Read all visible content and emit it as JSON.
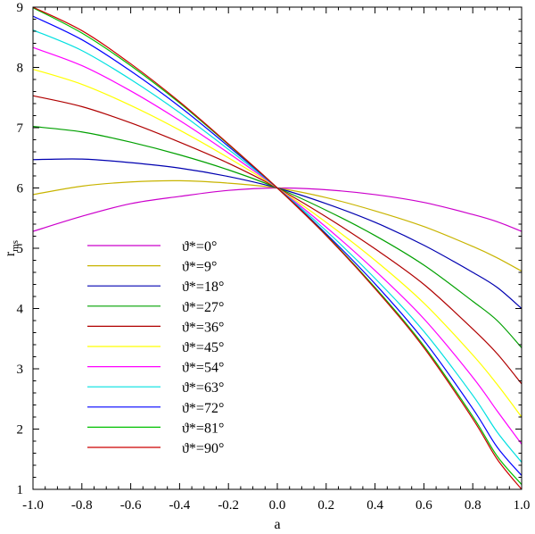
{
  "chart_data": {
    "type": "line",
    "title": "",
    "xlabel": "a",
    "ylabel_main": "r",
    "ylabel_sub": "ms",
    "xlim": [
      -1.0,
      1.0
    ],
    "ylim": [
      1,
      9
    ],
    "xticks": [
      "-1.0",
      "-0.8",
      "-0.6",
      "-0.4",
      "-0.2",
      "0.0",
      "0.2",
      "0.4",
      "0.6",
      "0.8",
      "1.0"
    ],
    "yticks": [
      "1",
      "2",
      "3",
      "4",
      "5",
      "6",
      "7",
      "8",
      "9"
    ],
    "grid": false,
    "legend_placement": "lower-left",
    "series": [
      {
        "name": "ϑ*=0°",
        "theta": 0,
        "color": "#cc00cc",
        "x": [
          -1.0,
          -0.8,
          -0.6,
          -0.4,
          -0.2,
          0.0,
          0.2,
          0.4,
          0.6,
          0.8,
          0.9,
          1.0
        ],
        "y": [
          5.28,
          5.53,
          5.74,
          5.86,
          5.96,
          6.0,
          5.97,
          5.89,
          5.76,
          5.56,
          5.44,
          5.28
        ]
      },
      {
        "name": "ϑ*=9°",
        "theta": 9,
        "color": "#c8b400",
        "x": [
          -1.0,
          -0.8,
          -0.6,
          -0.4,
          -0.2,
          0.0,
          0.2,
          0.4,
          0.6,
          0.8,
          0.9,
          1.0
        ],
        "y": [
          5.89,
          6.03,
          6.1,
          6.12,
          6.08,
          6.0,
          5.84,
          5.62,
          5.36,
          5.03,
          4.84,
          4.62
        ]
      },
      {
        "name": "ϑ*=18°",
        "theta": 18,
        "color": "#0000b0",
        "x": [
          -1.0,
          -0.8,
          -0.6,
          -0.4,
          -0.2,
          0.0,
          0.2,
          0.4,
          0.6,
          0.8,
          0.9,
          1.0
        ],
        "y": [
          6.47,
          6.48,
          6.42,
          6.33,
          6.19,
          6.0,
          5.74,
          5.43,
          5.05,
          4.6,
          4.35,
          4.0
        ]
      },
      {
        "name": "ϑ*=27°",
        "theta": 27,
        "color": "#00a000",
        "x": [
          -1.0,
          -0.8,
          -0.6,
          -0.4,
          -0.2,
          0.0,
          0.2,
          0.4,
          0.6,
          0.8,
          0.9,
          1.0
        ],
        "y": [
          7.02,
          6.93,
          6.76,
          6.55,
          6.3,
          6.0,
          5.63,
          5.21,
          4.72,
          4.12,
          3.8,
          3.35
        ]
      },
      {
        "name": "ϑ*=36°",
        "theta": 36,
        "color": "#b00000",
        "x": [
          -1.0,
          -0.8,
          -0.6,
          -0.4,
          -0.2,
          0.0,
          0.2,
          0.4,
          0.6,
          0.8,
          0.9,
          1.0
        ],
        "y": [
          7.53,
          7.35,
          7.08,
          6.76,
          6.41,
          6.0,
          5.52,
          4.99,
          4.4,
          3.66,
          3.25,
          2.75
        ]
      },
      {
        "name": "ϑ*=45°",
        "theta": 45,
        "color": "#ffff00",
        "x": [
          -1.0,
          -0.8,
          -0.6,
          -0.4,
          -0.2,
          0.0,
          0.2,
          0.4,
          0.6,
          0.8,
          0.9,
          1.0
        ],
        "y": [
          7.97,
          7.72,
          7.37,
          6.96,
          6.5,
          6.0,
          5.43,
          4.8,
          4.09,
          3.23,
          2.74,
          2.2
        ]
      },
      {
        "name": "ϑ*=54°",
        "theta": 54,
        "color": "#ff00ff",
        "x": [
          -1.0,
          -0.8,
          -0.6,
          -0.4,
          -0.2,
          0.0,
          0.2,
          0.4,
          0.6,
          0.8,
          0.9,
          1.0
        ],
        "y": [
          8.33,
          8.03,
          7.61,
          7.12,
          6.58,
          6.0,
          5.35,
          4.63,
          3.83,
          2.86,
          2.3,
          1.75
        ]
      },
      {
        "name": "ϑ*=63°",
        "theta": 63,
        "color": "#00e0e0",
        "x": [
          -1.0,
          -0.8,
          -0.6,
          -0.4,
          -0.2,
          0.0,
          0.2,
          0.4,
          0.6,
          0.8,
          0.9,
          1.0
        ],
        "y": [
          8.62,
          8.28,
          7.8,
          7.25,
          6.64,
          6.0,
          5.29,
          4.5,
          3.62,
          2.56,
          1.95,
          1.45
        ]
      },
      {
        "name": "ϑ*=72°",
        "theta": 72,
        "color": "#0000ff",
        "x": [
          -1.0,
          -0.8,
          -0.6,
          -0.4,
          -0.2,
          0.0,
          0.2,
          0.4,
          0.6,
          0.8,
          0.9,
          1.0
        ],
        "y": [
          8.85,
          8.46,
          7.94,
          7.35,
          6.69,
          6.0,
          5.24,
          4.41,
          3.47,
          2.34,
          1.7,
          1.23
        ]
      },
      {
        "name": "ϑ*=81°",
        "theta": 81,
        "color": "#00c000",
        "x": [
          -1.0,
          -0.8,
          -0.6,
          -0.4,
          -0.2,
          0.0,
          0.2,
          0.4,
          0.6,
          0.8,
          0.9,
          1.0
        ],
        "y": [
          8.99,
          8.57,
          8.03,
          7.41,
          6.72,
          6.0,
          5.22,
          4.35,
          3.38,
          2.21,
          1.55,
          1.08
        ]
      },
      {
        "name": "ϑ*=90°",
        "theta": 90,
        "color": "#cc0000",
        "x": [
          -1.0,
          -0.8,
          -0.6,
          -0.4,
          -0.2,
          0.0,
          0.2,
          0.4,
          0.6,
          0.8,
          0.9,
          1.0
        ],
        "y": [
          9.0,
          8.61,
          8.06,
          7.43,
          6.73,
          6.0,
          5.21,
          4.33,
          3.35,
          2.17,
          1.5,
          1.0
        ]
      }
    ]
  }
}
